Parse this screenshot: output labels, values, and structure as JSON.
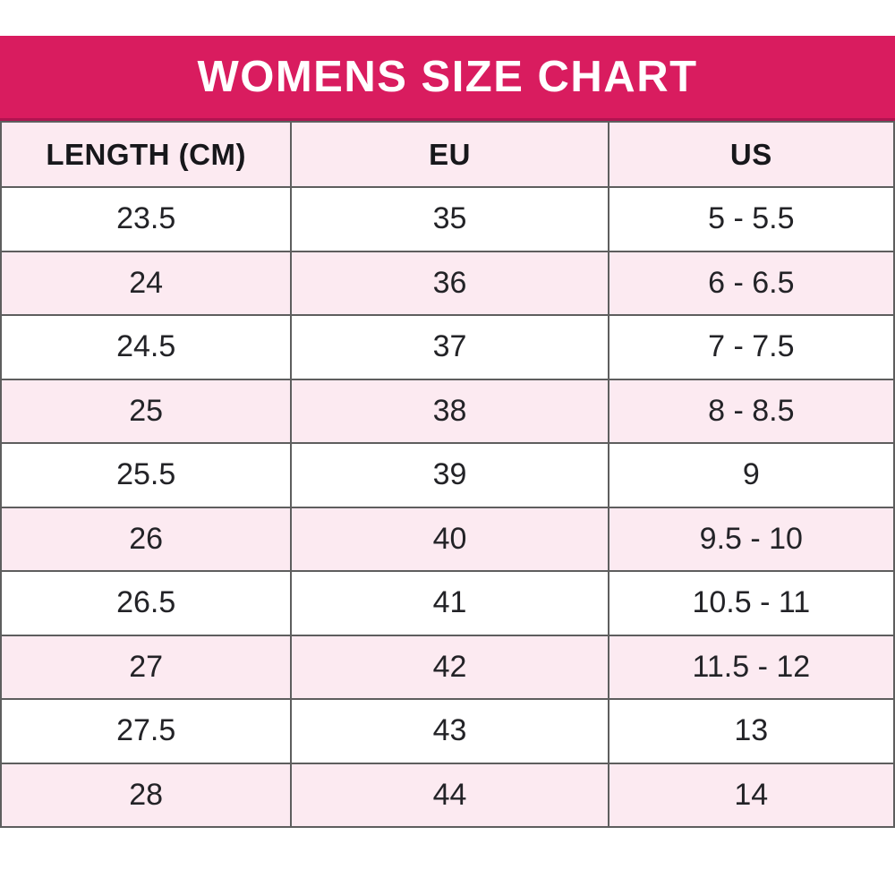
{
  "title": "WOMENS SIZE CHART",
  "colors": {
    "banner_background": "#D91C5F",
    "banner_bottom_edge": "#B01450",
    "banner_text": "#FFFFFF",
    "stripe_pink": "#FCEAF1",
    "stripe_white": "#FFFFFF",
    "grid_border": "#5E5E5E",
    "cell_text": "#232327"
  },
  "chart_data": {
    "type": "table",
    "title": "WOMENS SIZE CHART",
    "columns": [
      "LENGTH (CM)",
      "EU",
      "US"
    ],
    "rows": [
      [
        "23.5",
        "35",
        "5 - 5.5"
      ],
      [
        "24",
        "36",
        "6 - 6.5"
      ],
      [
        "24.5",
        "37",
        "7 - 7.5"
      ],
      [
        "25",
        "38",
        "8 - 8.5"
      ],
      [
        "25.5",
        "39",
        "9"
      ],
      [
        "26",
        "40",
        "9.5 - 10"
      ],
      [
        "26.5",
        "41",
        "10.5 - 11"
      ],
      [
        "27",
        "42",
        "11.5 - 12"
      ],
      [
        "27.5",
        "43",
        "13"
      ],
      [
        "28",
        "44",
        "14"
      ]
    ],
    "layout": {
      "header_background": "pale-pink",
      "row_striping": [
        "white",
        "pale-pink"
      ],
      "grid": true,
      "text_alignment": "center"
    }
  }
}
